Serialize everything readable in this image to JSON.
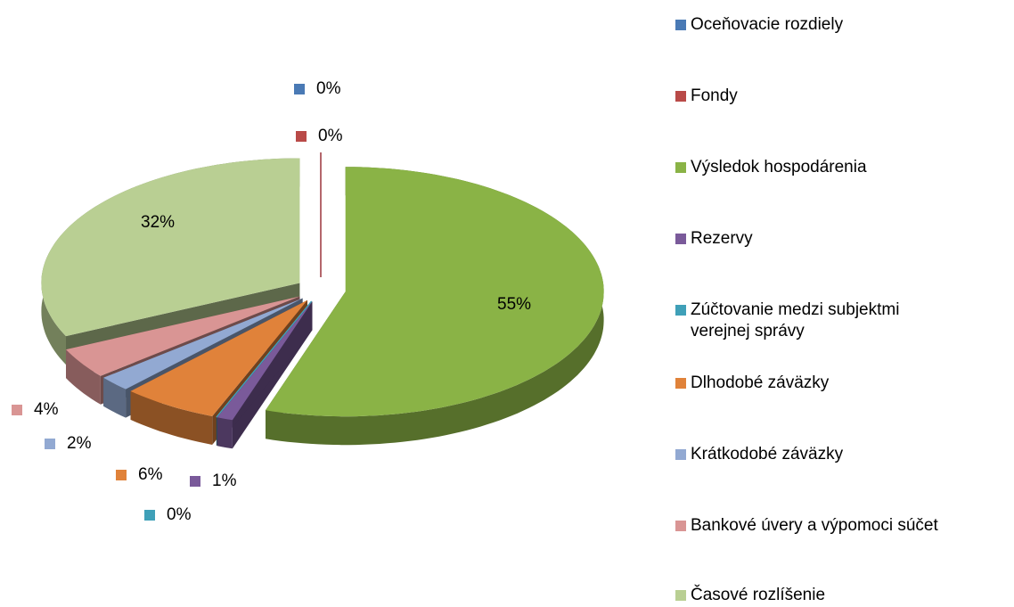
{
  "chart_data": {
    "type": "pie",
    "categories": [
      "Oceňovacie rozdiely",
      "Fondy",
      "Výsledok hospodárenia",
      "Rezervy",
      "Zúčtovanie medzi subjektmi verejnej správy",
      "Dlhodobé záväzky",
      "Krátkodobé záväzky",
      "Bankové úvery a výpomoci súčet",
      "Časové rozlíšenie"
    ],
    "values": [
      0,
      0,
      55,
      1,
      0,
      6,
      2,
      4,
      32
    ],
    "value_labels": [
      "0%",
      "0%",
      "55%",
      "1%",
      "0%",
      "6%",
      "2%",
      "4%",
      "32%"
    ],
    "colors": [
      "#4a7ab5",
      "#b94a48",
      "#8ab346",
      "#7a5a9a",
      "#3fa0b8",
      "#e0823a",
      "#92a9d2",
      "#d99594",
      "#b9cf93"
    ],
    "legend": "right"
  }
}
